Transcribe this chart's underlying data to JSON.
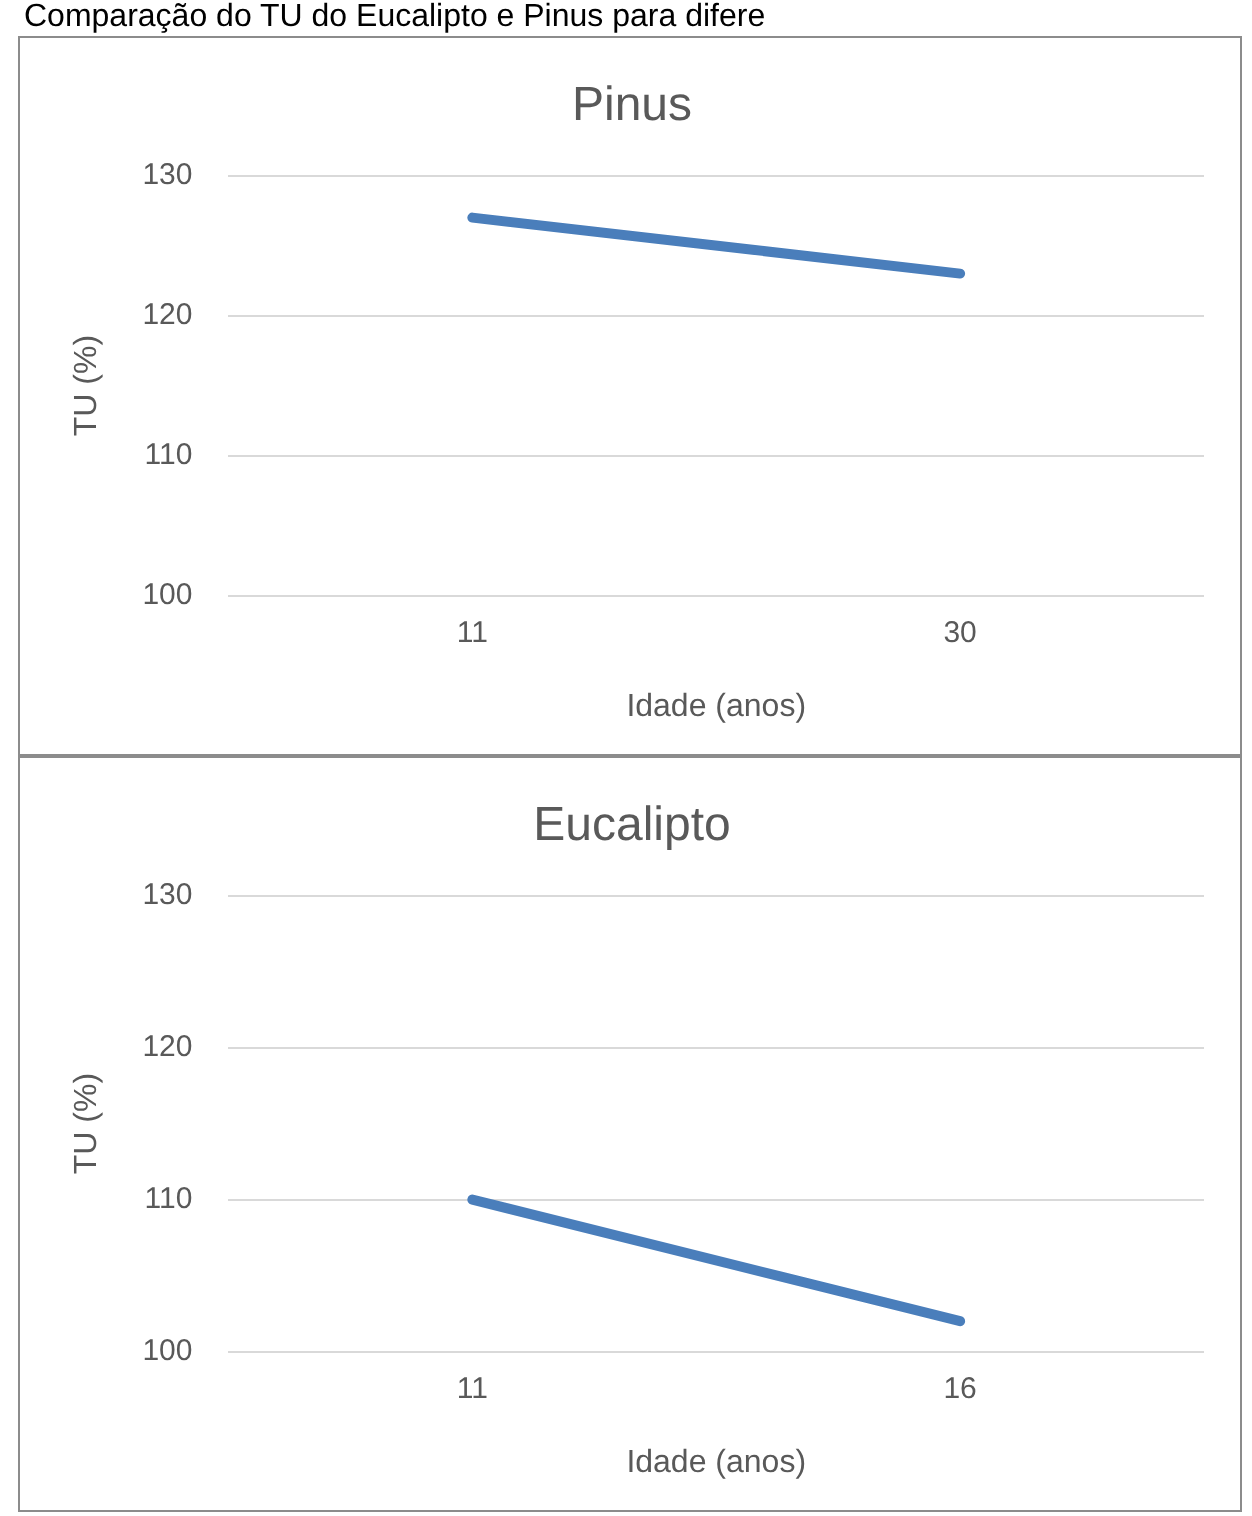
{
  "chart_data": [
    {
      "type": "line",
      "title": "Pinus",
      "xlabel": "Idade (anos)",
      "ylabel": "TU (%)",
      "categories": [
        "11",
        "30"
      ],
      "values": [
        127,
        123
      ],
      "color": "#4a7ebb",
      "ylim": [
        100,
        130
      ],
      "yticks": [
        100,
        110,
        120,
        130
      ],
      "grid": "y",
      "annotations": [
        "Comparação do TU do Eucalipto e Pinus para difere"
      ]
    },
    {
      "type": "line",
      "title": "Eucalipto",
      "xlabel": "Idade (anos)",
      "ylabel": "TU (%)",
      "categories": [
        "11",
        "16"
      ],
      "values": [
        110,
        102
      ],
      "color": "#4a7ebb",
      "ylim": [
        100,
        130
      ],
      "yticks": [
        100,
        110,
        120,
        130
      ],
      "grid": "y"
    }
  ]
}
